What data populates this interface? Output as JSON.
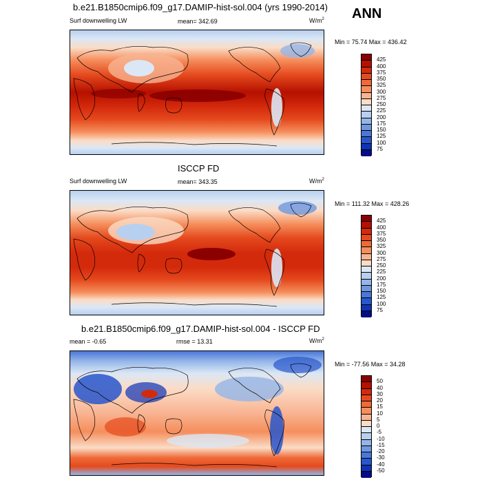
{
  "season": "ANN",
  "panels": [
    {
      "title": "b.e21.B1850cmip6.f09_g17.DAMIP-hist-sol.004 (yrs 1990-2014)",
      "left_label": "Surf downwelling LW",
      "mean": "mean= 342.69",
      "units": "W/m",
      "units_sup": "2",
      "minmax": "Min =  75.74 Max = 436.42",
      "colorbar_labels": [
        "425",
        "400",
        "375",
        "350",
        "325",
        "300",
        "275",
        "250",
        "225",
        "200",
        "175",
        "150",
        "125",
        "100",
        "75"
      ],
      "colorbar_colors": [
        "#8b0000",
        "#b51000",
        "#d42a0c",
        "#e54a1e",
        "#ef6a38",
        "#f58e5c",
        "#f8b492",
        "#fbdcc6",
        "#dbe7f5",
        "#b8d0ef",
        "#93b5e8",
        "#6e97e0",
        "#4a77d8",
        "#2856cc",
        "#0d33b8",
        "#000d85"
      ]
    },
    {
      "title": "ISCCP FD",
      "left_label": "Surf downwelling LW",
      "mean": "mean= 343.35",
      "units": "W/m",
      "units_sup": "2",
      "minmax": "Min = 111.32 Max = 428.26",
      "colorbar_labels": [
        "425",
        "400",
        "375",
        "350",
        "325",
        "300",
        "275",
        "250",
        "225",
        "200",
        "175",
        "150",
        "125",
        "100",
        "75"
      ],
      "colorbar_colors": [
        "#8b0000",
        "#b51000",
        "#d42a0c",
        "#e54a1e",
        "#ef6a38",
        "#f58e5c",
        "#f8b492",
        "#fbdcc6",
        "#dbe7f5",
        "#b8d0ef",
        "#93b5e8",
        "#6e97e0",
        "#4a77d8",
        "#2856cc",
        "#0d33b8",
        "#000d85"
      ]
    },
    {
      "title": "b.e21.B1850cmip6.f09_g17.DAMIP-hist-sol.004 - ISCCP FD",
      "left_label": "mean =  -0.65",
      "mean": "rmse =  13.31",
      "units": "W/m",
      "units_sup": "2",
      "minmax": "Min = -77.56 Max =  34.28",
      "colorbar_labels": [
        "50",
        "40",
        "30",
        "20",
        "15",
        "10",
        "5",
        "0",
        "-5",
        "-10",
        "-15",
        "-20",
        "-30",
        "-40",
        "-50"
      ],
      "colorbar_colors": [
        "#8b0000",
        "#b51000",
        "#d42a0c",
        "#e54a1e",
        "#ef6a38",
        "#f58e5c",
        "#f8b492",
        "#fbdcc6",
        "#dbe7f5",
        "#b8d0ef",
        "#93b5e8",
        "#6e97e0",
        "#4a77d8",
        "#2856cc",
        "#0d33b8",
        "#000d85"
      ]
    }
  ]
}
